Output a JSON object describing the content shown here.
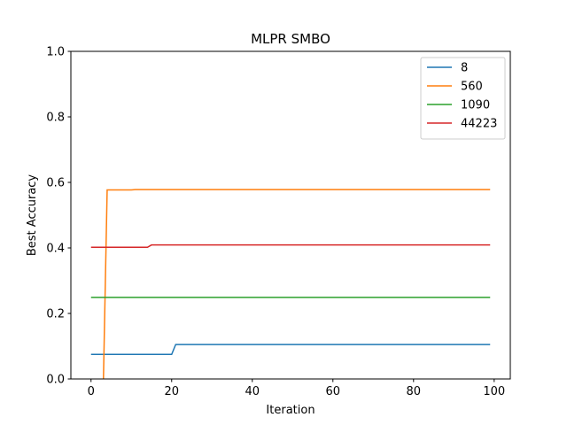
{
  "chart_data": {
    "type": "line",
    "title": "MLPR SMBO",
    "xlabel": "Iteration",
    "ylabel": "Best Accuracy",
    "xlim": [
      -5,
      104
    ],
    "ylim": [
      0.0,
      1.0
    ],
    "x_ticks": [
      0,
      20,
      40,
      60,
      80,
      100
    ],
    "y_ticks": [
      0.0,
      0.2,
      0.4,
      0.6,
      0.8,
      1.0
    ],
    "x_tick_labels": [
      "0",
      "20",
      "40",
      "60",
      "80",
      "100"
    ],
    "y_tick_labels": [
      "0.0",
      "0.2",
      "0.4",
      "0.6",
      "0.8",
      "1.0"
    ],
    "grid": false,
    "legend_position": "top-right",
    "series": [
      {
        "name": "8",
        "color": "#1f77b4",
        "points": [
          [
            0,
            0.075
          ],
          [
            20,
            0.075
          ],
          [
            21,
            0.105
          ],
          [
            99,
            0.105
          ]
        ]
      },
      {
        "name": "560",
        "color": "#ff7f0e",
        "points": [
          [
            3,
            -0.05
          ],
          [
            4,
            0.577
          ],
          [
            10,
            0.577
          ],
          [
            11,
            0.578
          ],
          [
            99,
            0.578
          ]
        ]
      },
      {
        "name": "1090",
        "color": "#2ca02c",
        "points": [
          [
            0,
            0.249
          ],
          [
            99,
            0.249
          ]
        ]
      },
      {
        "name": "44223",
        "color": "#d62728",
        "points": [
          [
            0,
            0.402
          ],
          [
            14,
            0.402
          ],
          [
            15,
            0.409
          ],
          [
            99,
            0.409
          ]
        ]
      }
    ]
  }
}
